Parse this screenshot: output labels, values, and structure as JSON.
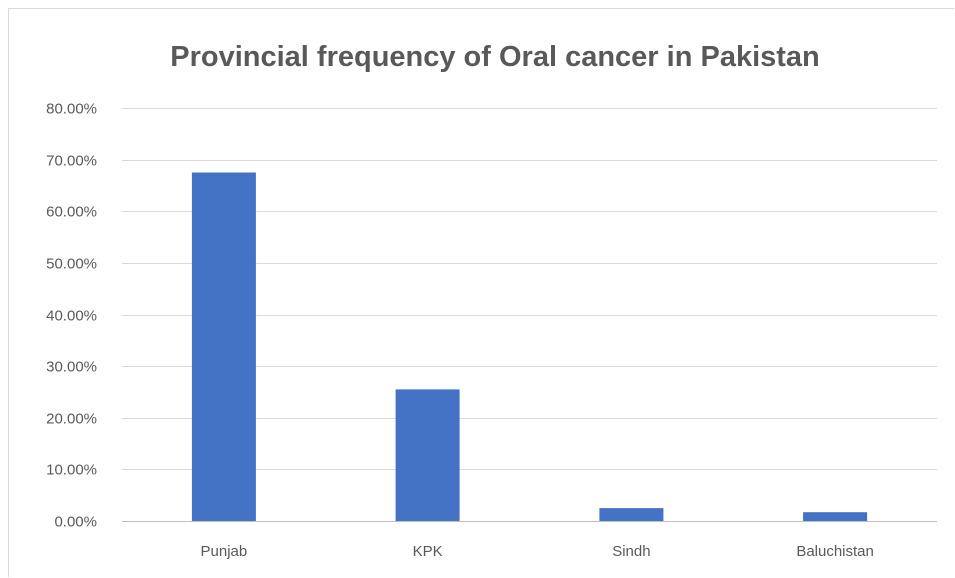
{
  "chart_data": {
    "type": "bar",
    "title": "Provincial frequency of Oral cancer in Pakistan",
    "categories": [
      "Punjab",
      "KPK",
      "Sindh",
      "Baluchistan"
    ],
    "values": [
      67.5,
      25.5,
      2.5,
      1.7
    ],
    "value_format": "percent_2dp",
    "ylim": [
      0,
      80
    ],
    "y_ticks": [
      0,
      10,
      20,
      30,
      40,
      50,
      60,
      70,
      80
    ],
    "y_tick_labels": [
      "0.00%",
      "10.00%",
      "20.00%",
      "30.00%",
      "40.00%",
      "50.00%",
      "60.00%",
      "70.00%",
      "80.00%"
    ],
    "xlabel": "",
    "ylabel": "",
    "grid": true,
    "legend": "none",
    "bar_color": "#4472c4"
  }
}
